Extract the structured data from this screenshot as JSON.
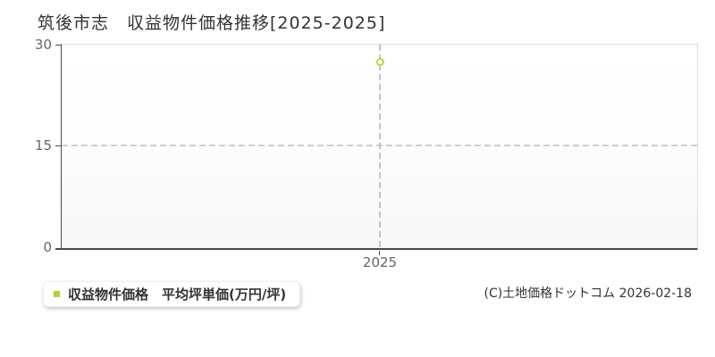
{
  "header": {
    "title": "筑後市志　収益物件価格推移[2025-2025]"
  },
  "y_axis": {
    "ticks": [
      "30",
      "15",
      "0"
    ]
  },
  "x_axis": {
    "ticks": [
      "2025"
    ]
  },
  "legend": {
    "marker_color": "#aed136",
    "label": "収益物件価格　平均坪単価(万円/坪)"
  },
  "footer": {
    "copyright": "(C)土地価格ドットコム 2026-02-18"
  },
  "chart_data": {
    "type": "scatter",
    "title": "筑後市志 収益物件価格推移[2025-2025]",
    "x": [
      2025
    ],
    "series": [
      {
        "name": "収益物件価格 平均坪単価(万円/坪)",
        "values": [
          27.5
        ]
      }
    ],
    "xlabel": "",
    "ylabel": "",
    "ylim": [
      0,
      30
    ],
    "y_tick_values": [
      0,
      15,
      30
    ],
    "grid": "horizontal dashed at 15; vertical dashed at x=2025; light solid top/right frame",
    "legend_position": "bottom-left outside plot",
    "marker": "open-circle",
    "point_color": "#bcd435"
  }
}
